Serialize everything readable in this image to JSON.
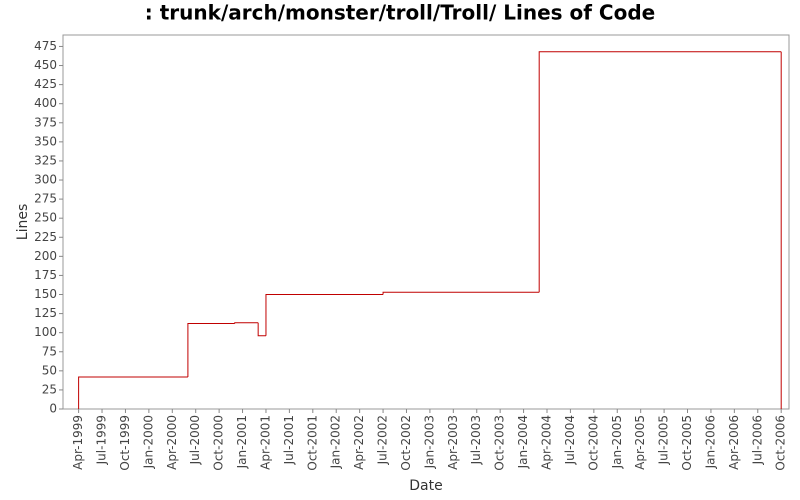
{
  "chart_data": {
    "type": "step",
    "title": ": trunk/arch/monster/troll/Troll/ Lines of Code",
    "x_label": "Date",
    "y_label": "Lines",
    "color": "#c00000",
    "x": [
      "1999-04",
      "1999-04",
      "2000-06",
      "2000-12",
      "2001-03",
      "2001-04",
      "2002-07",
      "2004-03",
      "2006-10"
    ],
    "values": [
      0,
      42,
      112,
      113,
      96,
      150,
      153,
      468,
      0
    ],
    "xlim": [
      "1999-02",
      "2006-11"
    ],
    "xticks": [
      {
        "value": "1999-04",
        "label": "Apr-1999"
      },
      {
        "value": "1999-07",
        "label": "Jul-1999"
      },
      {
        "value": "1999-10",
        "label": "Oct-1999"
      },
      {
        "value": "2000-01",
        "label": "Jan-2000"
      },
      {
        "value": "2000-04",
        "label": "Apr-2000"
      },
      {
        "value": "2000-07",
        "label": "Jul-2000"
      },
      {
        "value": "2000-10",
        "label": "Oct-2000"
      },
      {
        "value": "2001-01",
        "label": "Jan-2001"
      },
      {
        "value": "2001-04",
        "label": "Apr-2001"
      },
      {
        "value": "2001-07",
        "label": "Jul-2001"
      },
      {
        "value": "2001-10",
        "label": "Oct-2001"
      },
      {
        "value": "2002-01",
        "label": "Jan-2002"
      },
      {
        "value": "2002-04",
        "label": "Apr-2002"
      },
      {
        "value": "2002-07",
        "label": "Jul-2002"
      },
      {
        "value": "2002-10",
        "label": "Oct-2002"
      },
      {
        "value": "2003-01",
        "label": "Jan-2003"
      },
      {
        "value": "2003-04",
        "label": "Apr-2003"
      },
      {
        "value": "2003-07",
        "label": "Jul-2003"
      },
      {
        "value": "2003-10",
        "label": "Oct-2003"
      },
      {
        "value": "2004-01",
        "label": "Jan-2004"
      },
      {
        "value": "2004-04",
        "label": "Apr-2004"
      },
      {
        "value": "2004-07",
        "label": "Jul-2004"
      },
      {
        "value": "2004-10",
        "label": "Oct-2004"
      },
      {
        "value": "2005-01",
        "label": "Jan-2005"
      },
      {
        "value": "2005-04",
        "label": "Apr-2005"
      },
      {
        "value": "2005-07",
        "label": "Jul-2005"
      },
      {
        "value": "2005-10",
        "label": "Oct-2005"
      },
      {
        "value": "2006-01",
        "label": "Jan-2006"
      },
      {
        "value": "2006-04",
        "label": "Apr-2006"
      },
      {
        "value": "2006-07",
        "label": "Jul-2006"
      },
      {
        "value": "2006-10",
        "label": "Oct-2006"
      }
    ],
    "ylim": [
      0,
      490
    ],
    "yticks": [
      0,
      25,
      50,
      75,
      100,
      125,
      150,
      175,
      200,
      225,
      250,
      275,
      300,
      325,
      350,
      375,
      400,
      425,
      450,
      475
    ],
    "grid": false
  }
}
